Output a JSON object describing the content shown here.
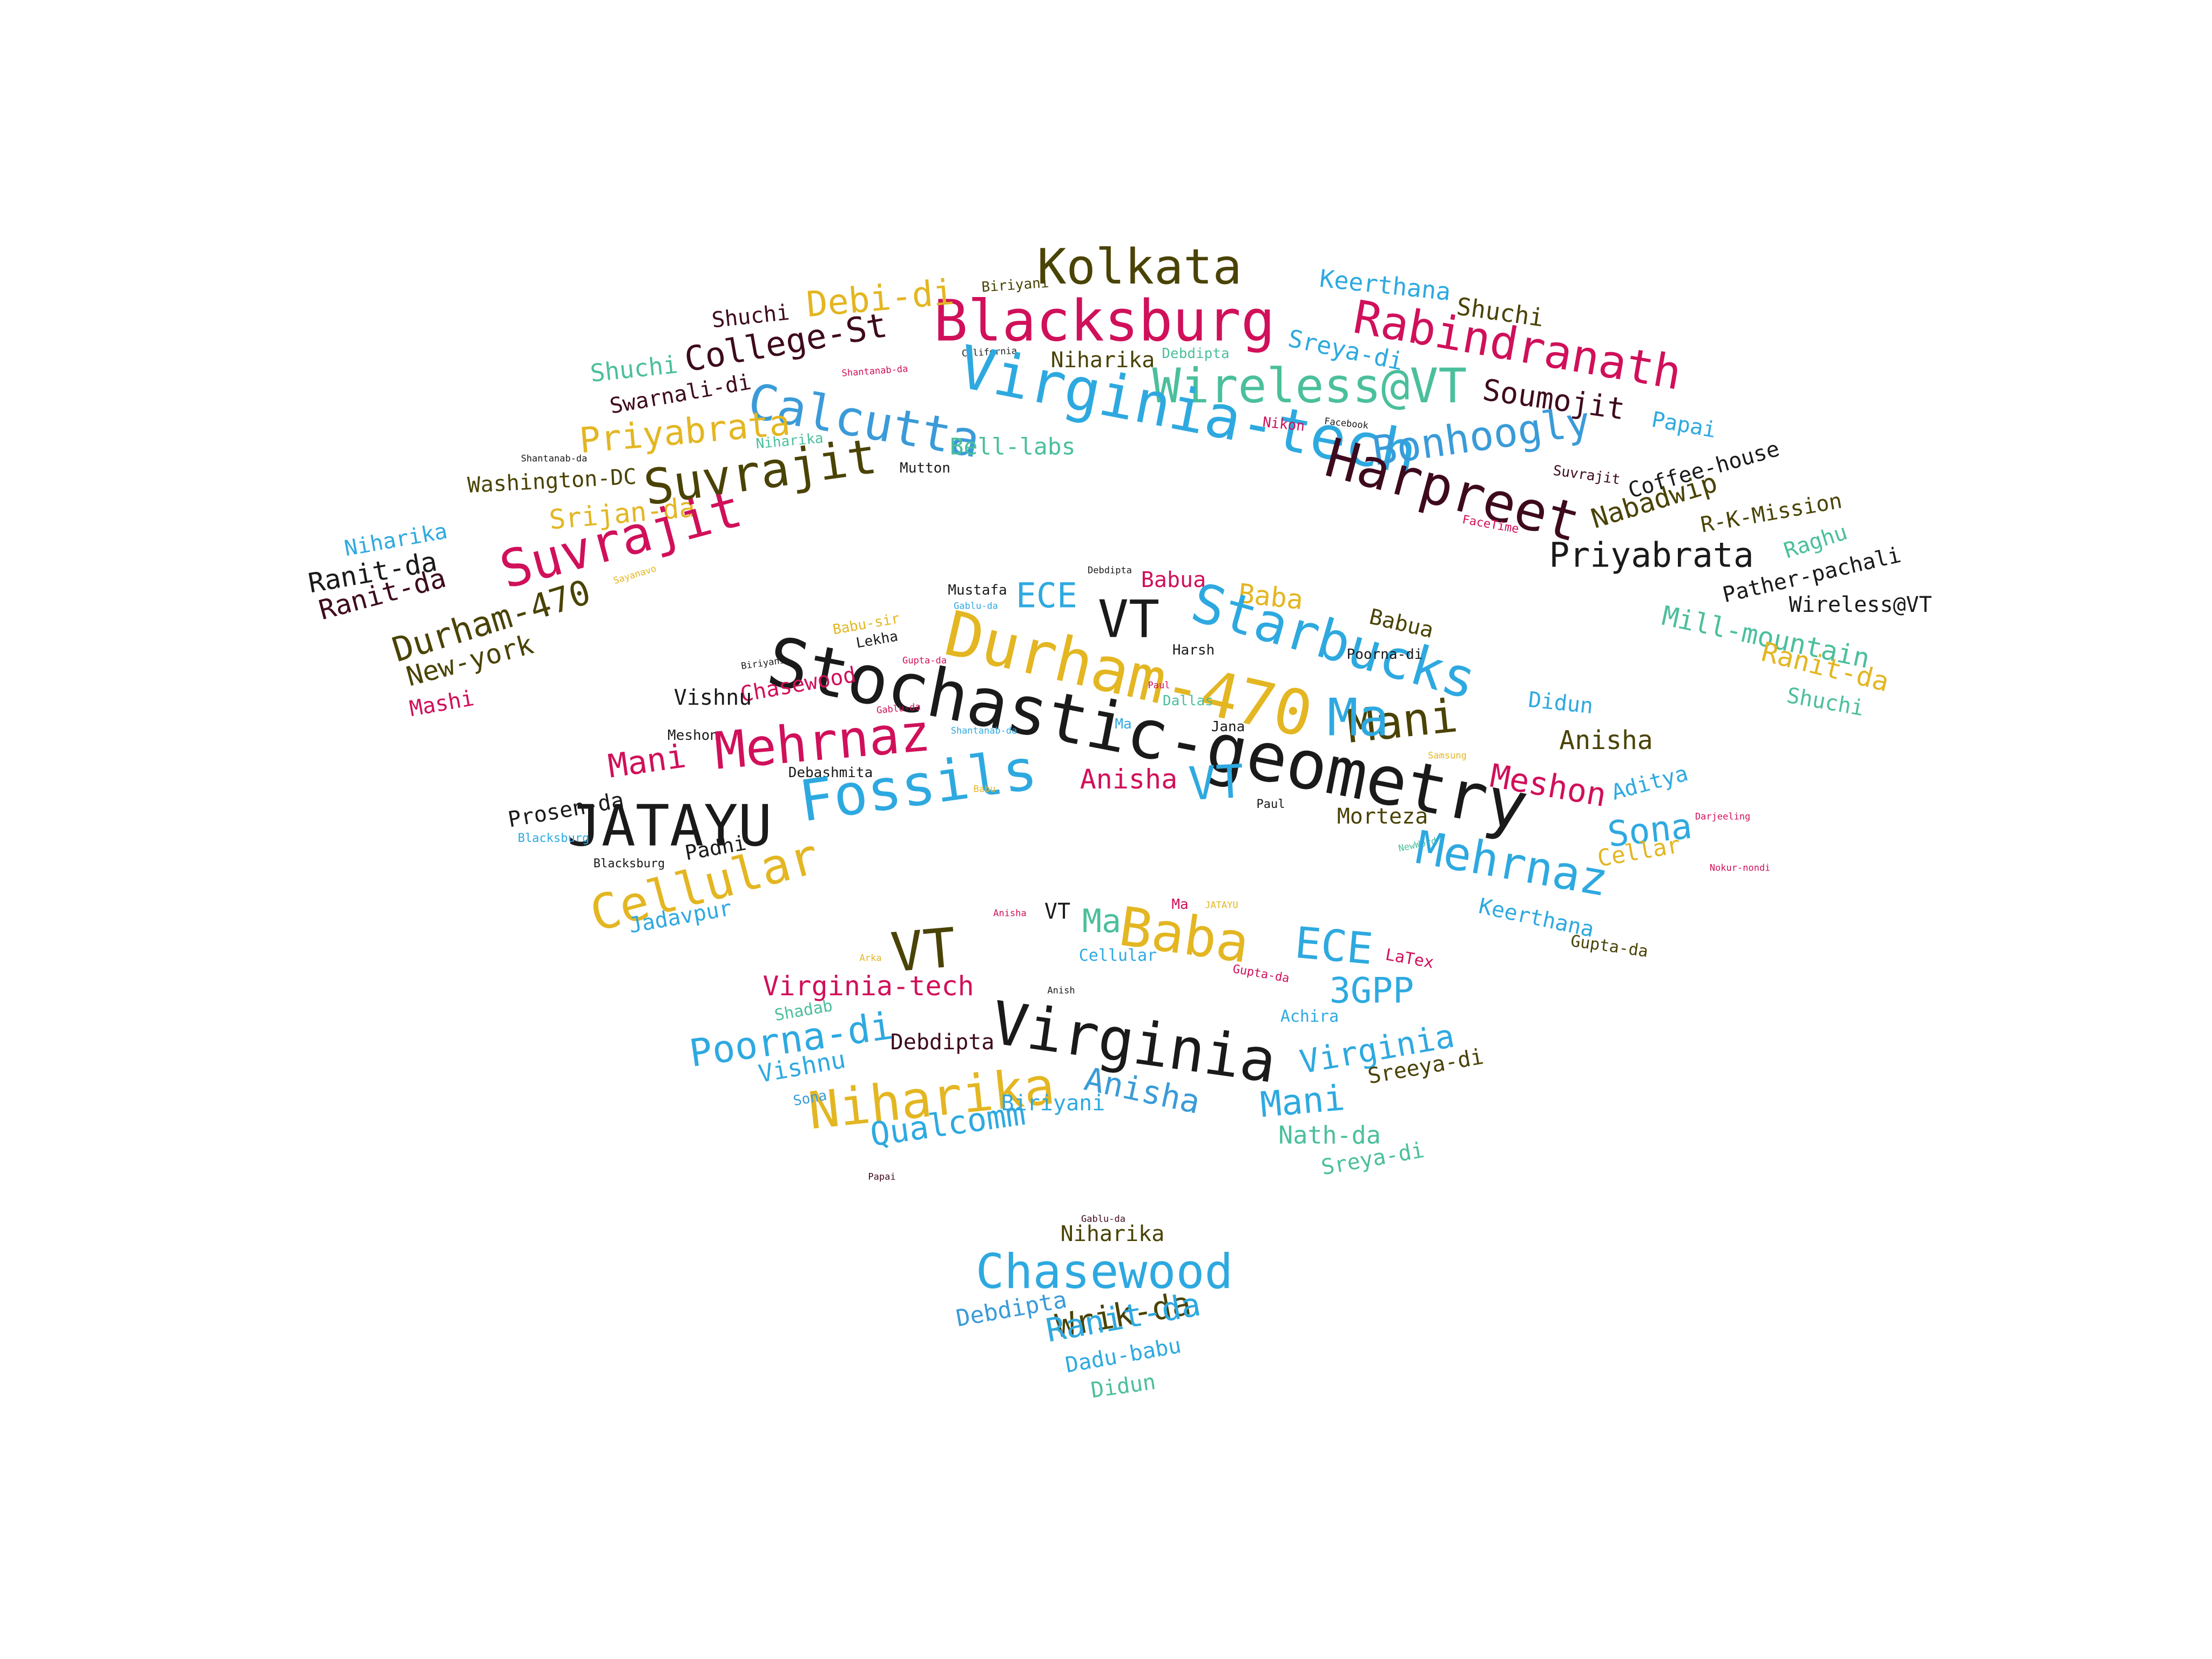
{
  "palette": {
    "magenta": "#d0105a",
    "sky": "#2ea9e0",
    "olive": "#4a4305",
    "gold": "#e3b622",
    "teal": "#4bbf9c",
    "maroon": "#3e0a1e",
    "ink": "#1a1a1a",
    "blue": "#3a9bd8"
  },
  "words": [
    {
      "text": "Kolkata",
      "color": "olive"
    },
    {
      "text": "Blacksburg",
      "color": "magenta"
    },
    {
      "text": "Debi-di",
      "color": "gold"
    },
    {
      "text": "Biriyani",
      "color": "olive"
    },
    {
      "text": "Keerthana",
      "color": "sky"
    },
    {
      "text": "Shuchi",
      "color": "olive"
    },
    {
      "text": "Rabindranath",
      "color": "magenta"
    },
    {
      "text": "Shuchi",
      "color": "maroon"
    },
    {
      "text": "College-St",
      "color": "maroon"
    },
    {
      "text": "California",
      "color": "ink"
    },
    {
      "text": "Niharika",
      "color": "olive"
    },
    {
      "text": "Debdipta",
      "color": "teal"
    },
    {
      "text": "Sreya-di",
      "color": "sky"
    },
    {
      "text": "Shuchi",
      "color": "teal"
    },
    {
      "text": "Shantanab-da",
      "color": "magenta"
    },
    {
      "text": "Wireless@VT",
      "color": "teal"
    },
    {
      "text": "Soumojit",
      "color": "maroon"
    },
    {
      "text": "Swarnali-di",
      "color": "maroon"
    },
    {
      "text": "Calcutta",
      "color": "blue"
    },
    {
      "text": "Virginia-tech",
      "color": "sky"
    },
    {
      "text": "Papai",
      "color": "sky"
    },
    {
      "text": "Priyabrata",
      "color": "gold"
    },
    {
      "text": "Niharika",
      "color": "teal"
    },
    {
      "text": "Bell-labs",
      "color": "teal"
    },
    {
      "text": "Nikon",
      "color": "magenta"
    },
    {
      "text": "Facebook",
      "color": "ink"
    },
    {
      "text": "Bonhoogly",
      "color": "blue"
    },
    {
      "text": "Shantanab-da",
      "color": "ink"
    },
    {
      "text": "Suvrajit",
      "color": "olive"
    },
    {
      "text": "Mutton",
      "color": "ink"
    },
    {
      "text": "Harpreet",
      "color": "maroon"
    },
    {
      "text": "Coffee-house",
      "color": "ink"
    },
    {
      "text": "Washington-DC",
      "color": "olive"
    },
    {
      "text": "Suvrajit",
      "color": "maroon"
    },
    {
      "text": "Nabadwip",
      "color": "olive"
    },
    {
      "text": "Srijan-da",
      "color": "gold"
    },
    {
      "text": "R-K-Mission",
      "color": "olive"
    },
    {
      "text": "Niharika",
      "color": "sky"
    },
    {
      "text": "Suvrajit",
      "color": "magenta"
    },
    {
      "text": "FaceTime",
      "color": "magenta"
    },
    {
      "text": "Priyabrata",
      "color": "ink"
    },
    {
      "text": "Raghu",
      "color": "teal"
    },
    {
      "text": "Ranit-da",
      "color": "ink"
    },
    {
      "text": "Sayanavo",
      "color": "gold"
    },
    {
      "text": "Pather-pachali",
      "color": "ink"
    },
    {
      "text": "Ranit-da",
      "color": "maroon"
    },
    {
      "text": "Wireless@VT",
      "color": "ink"
    },
    {
      "text": "Durham-470",
      "color": "olive"
    },
    {
      "text": "Mill-mountain",
      "color": "teal"
    },
    {
      "text": "New-york",
      "color": "olive"
    },
    {
      "text": "Ranit-da",
      "color": "gold"
    },
    {
      "text": "Mashi",
      "color": "magenta"
    },
    {
      "text": "Shuchi",
      "color": "teal"
    },
    {
      "text": "Debdipta",
      "color": "ink"
    },
    {
      "text": "Babua",
      "color": "magenta"
    },
    {
      "text": "Mustafa",
      "color": "ink"
    },
    {
      "text": "ECE",
      "color": "sky"
    },
    {
      "text": "VT",
      "color": "ink"
    },
    {
      "text": "Baba",
      "color": "gold"
    },
    {
      "text": "Starbucks",
      "color": "sky"
    },
    {
      "text": "Babua",
      "color": "olive"
    },
    {
      "text": "Gablu-da",
      "color": "sky"
    },
    {
      "text": "Durham-470",
      "color": "gold"
    },
    {
      "text": "Babu-sir",
      "color": "gold"
    },
    {
      "text": "Lekha",
      "color": "ink"
    },
    {
      "text": "Harsh",
      "color": "ink"
    },
    {
      "text": "Poorna-di",
      "color": "ink"
    },
    {
      "text": "Biriyani",
      "color": "ink"
    },
    {
      "text": "Gupta-da",
      "color": "magenta"
    },
    {
      "text": "Stochastic-geometry",
      "color": "ink"
    },
    {
      "text": "Paul",
      "color": "magenta"
    },
    {
      "text": "Dallas",
      "color": "teal"
    },
    {
      "text": "Didun",
      "color": "sky"
    },
    {
      "text": "Chasewood",
      "color": "magenta"
    },
    {
      "text": "Vishnu",
      "color": "ink"
    },
    {
      "text": "Gablu-da",
      "color": "magenta"
    },
    {
      "text": "Ma",
      "color": "sky"
    },
    {
      "text": "Mani",
      "color": "olive"
    },
    {
      "text": "Jana",
      "color": "ink"
    },
    {
      "text": "Meshon",
      "color": "ink"
    },
    {
      "text": "Mehrnaz",
      "color": "magenta"
    },
    {
      "text": "Shantanab-da",
      "color": "sky"
    },
    {
      "text": "Ma",
      "color": "sky"
    },
    {
      "text": "Anisha",
      "color": "olive"
    },
    {
      "text": "Mani",
      "color": "magenta"
    },
    {
      "text": "Debashmita",
      "color": "ink"
    },
    {
      "text": "Fossils",
      "color": "sky"
    },
    {
      "text": "Anisha",
      "color": "magenta"
    },
    {
      "text": "VT",
      "color": "sky"
    },
    {
      "text": "Samsung",
      "color": "gold"
    },
    {
      "text": "Meshon",
      "color": "magenta"
    },
    {
      "text": "Aditya",
      "color": "sky"
    },
    {
      "text": "Babu",
      "color": "gold"
    },
    {
      "text": "Paul",
      "color": "ink"
    },
    {
      "text": "Morteza",
      "color": "olive"
    },
    {
      "text": "Prosen-da",
      "color": "ink"
    },
    {
      "text": "JATAYU",
      "color": "ink"
    },
    {
      "text": "Sona",
      "color": "sky"
    },
    {
      "text": "Darjeeling",
      "color": "magenta"
    },
    {
      "text": "Blacksburg",
      "color": "sky"
    },
    {
      "text": "Padhi",
      "color": "ink"
    },
    {
      "text": "NewWord",
      "color": "teal"
    },
    {
      "text": "Mehrnaz",
      "color": "sky"
    },
    {
      "text": "Cellar",
      "color": "gold"
    },
    {
      "text": "Blacksburg",
      "color": "ink"
    },
    {
      "text": "Nokur-nondi",
      "color": "magenta"
    },
    {
      "text": "Cellular",
      "color": "gold"
    },
    {
      "text": "Keerthana",
      "color": "sky"
    },
    {
      "text": "Jadavpur",
      "color": "sky"
    },
    {
      "text": "Gupta-da",
      "color": "olive"
    },
    {
      "text": "Anisha",
      "color": "magenta"
    },
    {
      "text": "VT",
      "color": "ink"
    },
    {
      "text": "Ma",
      "color": "teal"
    },
    {
      "text": "Ma",
      "color": "magenta"
    },
    {
      "text": "JATAYU",
      "color": "gold"
    },
    {
      "text": "Baba",
      "color": "gold"
    },
    {
      "text": "ECE",
      "color": "sky"
    },
    {
      "text": "VT",
      "color": "olive"
    },
    {
      "text": "Cellular",
      "color": "sky"
    },
    {
      "text": "LaTex",
      "color": "magenta"
    },
    {
      "text": "Arka",
      "color": "gold"
    },
    {
      "text": "Gupta-da",
      "color": "magenta"
    },
    {
      "text": "Virginia-tech",
      "color": "magenta"
    },
    {
      "text": "3GPP",
      "color": "sky"
    },
    {
      "text": "Anish",
      "color": "ink"
    },
    {
      "text": "Shadab",
      "color": "teal"
    },
    {
      "text": "Achira",
      "color": "sky"
    },
    {
      "text": "Poorna-di",
      "color": "sky"
    },
    {
      "text": "Virginia",
      "color": "ink"
    },
    {
      "text": "Virginia",
      "color": "sky"
    },
    {
      "text": "Debdipta",
      "color": "maroon"
    },
    {
      "text": "Vishnu",
      "color": "sky"
    },
    {
      "text": "Sreeya-di",
      "color": "olive"
    },
    {
      "text": "Niharika",
      "color": "gold"
    },
    {
      "text": "Anisha",
      "color": "blue"
    },
    {
      "text": "Sona",
      "color": "blue"
    },
    {
      "text": "Biriyani",
      "color": "sky"
    },
    {
      "text": "Mani",
      "color": "sky"
    },
    {
      "text": "Qualcomm",
      "color": "sky"
    },
    {
      "text": "Nath-da",
      "color": "teal"
    },
    {
      "text": "Sreya-di",
      "color": "teal"
    },
    {
      "text": "Papai",
      "color": "maroon"
    },
    {
      "text": "Gablu-da",
      "color": "maroon"
    },
    {
      "text": "Niharika",
      "color": "olive"
    },
    {
      "text": "Chasewood",
      "color": "sky"
    },
    {
      "text": "Debdipta",
      "color": "blue"
    },
    {
      "text": "Wrik-da",
      "color": "olive"
    },
    {
      "text": "Ranit-da",
      "color": "sky"
    },
    {
      "text": "Dadu-babu",
      "color": "sky"
    },
    {
      "text": "Didun",
      "color": "teal"
    }
  ]
}
